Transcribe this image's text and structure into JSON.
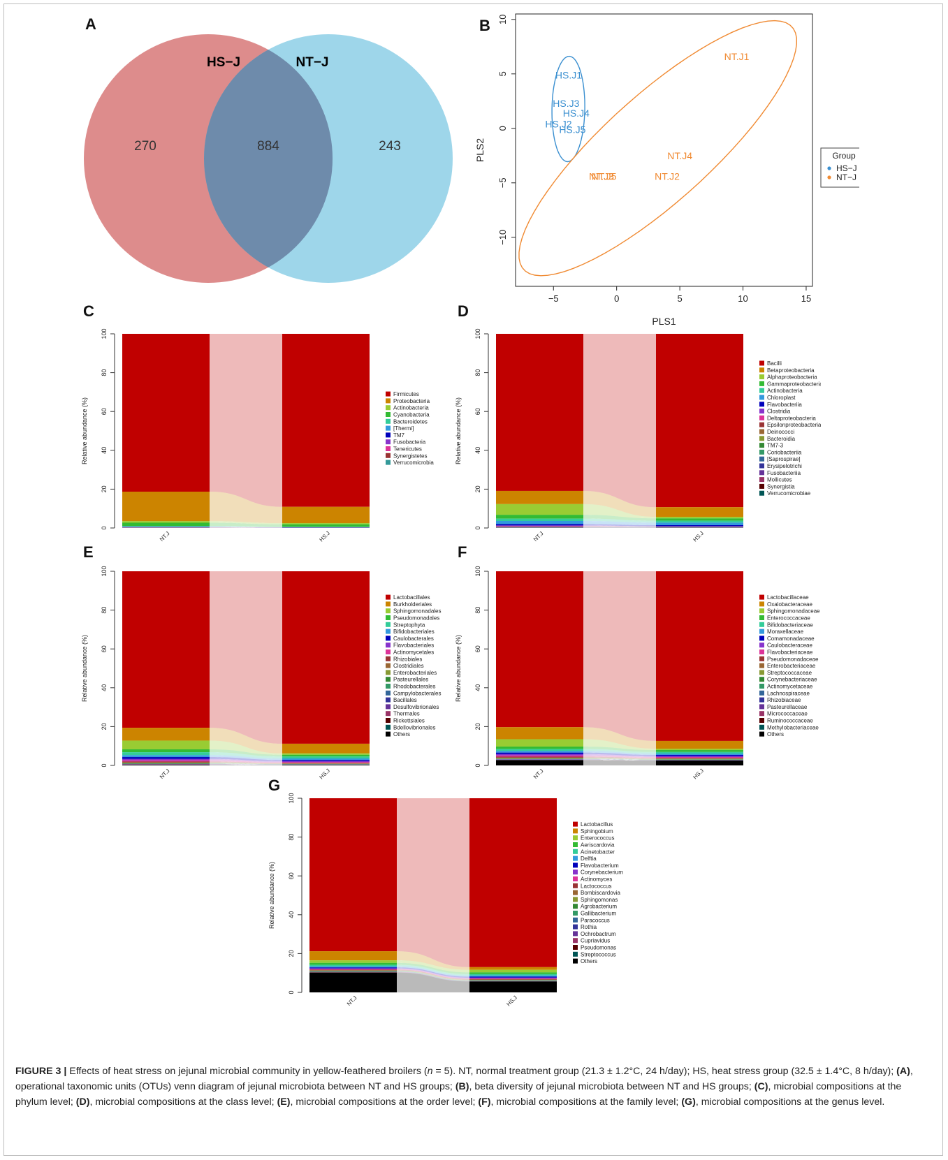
{
  "panels": {
    "A": {
      "letter": "A"
    },
    "B": {
      "letter": "B"
    },
    "C": {
      "letter": "C"
    },
    "D": {
      "letter": "D"
    },
    "E": {
      "letter": "E"
    },
    "F": {
      "letter": "F"
    },
    "G": {
      "letter": "G"
    }
  },
  "chart_data": [
    {
      "panel": "A",
      "type": "venn",
      "sets": [
        {
          "name": "HS-J",
          "label": "HS−J",
          "unique": 270,
          "color": "#d98080"
        },
        {
          "name": "NT-J",
          "label": "NT−J",
          "unique": 243,
          "color": "#7ec8e3"
        }
      ],
      "overlap": 884
    },
    {
      "panel": "B",
      "type": "scatter",
      "xlabel": "PLS1",
      "ylabel": "PLS2",
      "xlim": [
        -8,
        15.5
      ],
      "ylim": [
        -14.5,
        10.5
      ],
      "xticks": [
        -5,
        0,
        5,
        10,
        15
      ],
      "yticks": [
        -10,
        -5,
        0,
        5,
        10
      ],
      "legend": {
        "title": "Group",
        "placement": "right"
      },
      "series": [
        {
          "name": "HS−J",
          "color": "#3a8fd0",
          "points": [
            {
              "label": "HS.J1",
              "x": -3.8,
              "y": 4.9
            },
            {
              "label": "HS.J3",
              "x": -4.0,
              "y": 2.3
            },
            {
              "label": "HS.J4",
              "x": -3.2,
              "y": 1.4
            },
            {
              "label": "HS.J2",
              "x": -4.6,
              "y": 0.4
            },
            {
              "label": "HS.J5",
              "x": -3.5,
              "y": -0.1
            }
          ]
        },
        {
          "name": "NT−J",
          "color": "#f08a32",
          "points": [
            {
              "label": "NT.J1",
              "x": 9.5,
              "y": 6.6
            },
            {
              "label": "NT.J4",
              "x": 5.0,
              "y": -2.5
            },
            {
              "label": "NT.J2",
              "x": 4.0,
              "y": -4.4
            },
            {
              "label": "NT.J3",
              "x": -1.2,
              "y": -4.4
            },
            {
              "label": "NT.J5",
              "x": -1.0,
              "y": -4.4
            }
          ]
        }
      ]
    },
    {
      "panel": "C",
      "type": "bar",
      "stacked": true,
      "ylabel": "Relative abundance (%)",
      "ylim": [
        0,
        100
      ],
      "yticks": [
        0,
        20,
        40,
        60,
        80,
        100
      ],
      "categories": [
        "NT.J",
        "HS.J"
      ],
      "series": [
        {
          "name": "Firmicutes",
          "color": "#c00000",
          "values": [
            81.3,
            89.2
          ]
        },
        {
          "name": "Proteobacteria",
          "color": "#cc8400",
          "values": [
            15.2,
            8.4
          ]
        },
        {
          "name": "Actinobacteria",
          "color": "#99cc33",
          "values": [
            0.8,
            0.6
          ]
        },
        {
          "name": "Cyanobacteria",
          "color": "#33bb33",
          "values": [
            1.7,
            1.3
          ]
        },
        {
          "name": "Bacteroidetes",
          "color": "#33cc99",
          "values": [
            0.3,
            0.2
          ]
        },
        {
          "name": "[Thermi]",
          "color": "#3399dd",
          "values": [
            0.2,
            0.1
          ]
        },
        {
          "name": "TM7",
          "color": "#0000bb",
          "values": [
            0.1,
            0.1
          ]
        },
        {
          "name": "Fusobacteria",
          "color": "#8833cc",
          "values": [
            0.1,
            0.05
          ]
        },
        {
          "name": "Tenericutes",
          "color": "#dd3399",
          "values": [
            0.1,
            0.05
          ]
        },
        {
          "name": "Synergistetes",
          "color": "#993333",
          "values": [
            0.1,
            0.05
          ]
        },
        {
          "name": "Verrucomicrobia",
          "color": "#339999",
          "values": [
            0.1,
            0.05
          ]
        }
      ]
    },
    {
      "panel": "D",
      "type": "bar",
      "stacked": true,
      "ylabel": "Relative abundance (%)",
      "ylim": [
        0,
        100
      ],
      "yticks": [
        0,
        20,
        40,
        60,
        80,
        100
      ],
      "categories": [
        "NT.J",
        "HS.J"
      ],
      "series": [
        {
          "name": "Bacilli",
          "color": "#c00000",
          "values": [
            81.0,
            89.5
          ]
        },
        {
          "name": "Betaproteobacteria",
          "color": "#cc8400",
          "values": [
            6.8,
            5.0
          ]
        },
        {
          "name": "Alphaproteobacteria",
          "color": "#99cc33",
          "values": [
            5.5,
            0.8
          ]
        },
        {
          "name": "Gammaproteobacteria",
          "color": "#33bb33",
          "values": [
            2.0,
            1.2
          ]
        },
        {
          "name": "Actinobacteria",
          "color": "#33cc99",
          "values": [
            1.2,
            1.0
          ]
        },
        {
          "name": "Chloroplast",
          "color": "#3399dd",
          "values": [
            1.6,
            1.3
          ]
        },
        {
          "name": "Flavobacteriia",
          "color": "#0000bb",
          "values": [
            0.7,
            0.6
          ]
        },
        {
          "name": "Clostridia",
          "color": "#8833cc",
          "values": [
            0.4,
            0.2
          ]
        },
        {
          "name": "Deltaproteobacteria",
          "color": "#dd3399",
          "values": [
            0.2,
            0.1
          ]
        },
        {
          "name": "Epsilonproteobacteria",
          "color": "#993333",
          "values": [
            0.1,
            0.05
          ]
        },
        {
          "name": "Deinococci",
          "color": "#996633",
          "values": [
            0.1,
            0.05
          ]
        },
        {
          "name": "Bacteroidia",
          "color": "#889933",
          "values": [
            0.1,
            0.05
          ]
        },
        {
          "name": "TM7-3",
          "color": "#338833",
          "values": [
            0.05,
            0.05
          ]
        },
        {
          "name": "Coriobacteriia",
          "color": "#339966",
          "values": [
            0.05,
            0.05
          ]
        },
        {
          "name": "[Saprospirae]",
          "color": "#336699",
          "values": [
            0.05,
            0.05
          ]
        },
        {
          "name": "Erysipelotrichi",
          "color": "#333399",
          "values": [
            0.05,
            0.05
          ]
        },
        {
          "name": "Fusobacteriia",
          "color": "#663399",
          "values": [
            0.05,
            0.05
          ]
        },
        {
          "name": "Mollicutes",
          "color": "#993366",
          "values": [
            0.05,
            0.05
          ]
        },
        {
          "name": "Synergistia",
          "color": "#550000",
          "values": [
            0.05,
            0.05
          ]
        },
        {
          "name": "Verrucomicrobiae",
          "color": "#005555",
          "values": [
            0.05,
            0.05
          ]
        }
      ]
    },
    {
      "panel": "E",
      "type": "bar",
      "stacked": true,
      "ylabel": "Relative abundance (%)",
      "ylim": [
        0,
        100
      ],
      "yticks": [
        0,
        20,
        40,
        60,
        80,
        100
      ],
      "categories": [
        "NT.J",
        "HS.J"
      ],
      "series": [
        {
          "name": "Lactobacillales",
          "color": "#c00000",
          "values": [
            80.7,
            89.0
          ]
        },
        {
          "name": "Burkholderiales",
          "color": "#cc8400",
          "values": [
            6.6,
            5.0
          ]
        },
        {
          "name": "Sphingomonadales",
          "color": "#99cc33",
          "values": [
            4.5,
            0.7
          ]
        },
        {
          "name": "Pseudomonadales",
          "color": "#33bb33",
          "values": [
            1.5,
            0.9
          ]
        },
        {
          "name": "Streptophyta",
          "color": "#33cc99",
          "values": [
            1.5,
            1.0
          ]
        },
        {
          "name": "Bifidobacteriales",
          "color": "#3399dd",
          "values": [
            1.0,
            0.8
          ]
        },
        {
          "name": "Caulobacterales",
          "color": "#0000bb",
          "values": [
            1.0,
            0.6
          ]
        },
        {
          "name": "Flavobacteriales",
          "color": "#8833cc",
          "values": [
            0.7,
            0.5
          ]
        },
        {
          "name": "Actinomycetales",
          "color": "#dd3399",
          "values": [
            0.6,
            0.4
          ]
        },
        {
          "name": "Rhizobiales",
          "color": "#993333",
          "values": [
            0.4,
            0.3
          ]
        },
        {
          "name": "Clostridiales",
          "color": "#996633",
          "values": [
            0.3,
            0.2
          ]
        },
        {
          "name": "Enterobacteriales",
          "color": "#889933",
          "values": [
            0.2,
            0.1
          ]
        },
        {
          "name": "Pasteurellales",
          "color": "#338833",
          "values": [
            0.2,
            0.1
          ]
        },
        {
          "name": "Rhodobacterales",
          "color": "#339966",
          "values": [
            0.1,
            0.1
          ]
        },
        {
          "name": "Campylobacterales",
          "color": "#336699",
          "values": [
            0.1,
            0.05
          ]
        },
        {
          "name": "Bacillales",
          "color": "#333399",
          "values": [
            0.1,
            0.05
          ]
        },
        {
          "name": "Desulfovibrionales",
          "color": "#663399",
          "values": [
            0.1,
            0.05
          ]
        },
        {
          "name": "Thermales",
          "color": "#993366",
          "values": [
            0.1,
            0.05
          ]
        },
        {
          "name": "Rickettsiales",
          "color": "#550000",
          "values": [
            0.05,
            0.05
          ]
        },
        {
          "name": "Bdellovibrionales",
          "color": "#005555",
          "values": [
            0.05,
            0.05
          ]
        },
        {
          "name": "Others",
          "color": "#000000",
          "values": [
            0.3,
            0.2
          ]
        }
      ]
    },
    {
      "panel": "F",
      "type": "bar",
      "stacked": true,
      "ylabel": "Relative abundance (%)",
      "ylim": [
        0,
        100
      ],
      "yticks": [
        0,
        20,
        40,
        60,
        80,
        100
      ],
      "categories": [
        "NT.J",
        "HS.J"
      ],
      "series": [
        {
          "name": "Lactobacillaceae",
          "color": "#c00000",
          "values": [
            80.3,
            87.3
          ]
        },
        {
          "name": "Oxalobacteraceae",
          "color": "#cc8400",
          "values": [
            6.2,
            4.0
          ]
        },
        {
          "name": "Sphingomonadaceae",
          "color": "#99cc33",
          "values": [
            3.8,
            0.7
          ]
        },
        {
          "name": "Enterococcaceae",
          "color": "#33bb33",
          "values": [
            1.2,
            1.0
          ]
        },
        {
          "name": "Bifidobacteriaceae",
          "color": "#33cc99",
          "values": [
            1.0,
            0.8
          ]
        },
        {
          "name": "Moraxellaceae",
          "color": "#3399dd",
          "values": [
            0.9,
            0.7
          ]
        },
        {
          "name": "Comamonadaceae",
          "color": "#0000bb",
          "values": [
            0.8,
            0.6
          ]
        },
        {
          "name": "Caulobacteraceae",
          "color": "#8833cc",
          "values": [
            0.7,
            0.5
          ]
        },
        {
          "name": "Flavobacteriaceae",
          "color": "#dd3399",
          "values": [
            0.6,
            0.4
          ]
        },
        {
          "name": "Pseudomonadaceae",
          "color": "#993333",
          "values": [
            0.5,
            0.4
          ]
        },
        {
          "name": "Enterobacteriaceae",
          "color": "#996633",
          "values": [
            0.3,
            0.2
          ]
        },
        {
          "name": "Streptococcaceae",
          "color": "#889933",
          "values": [
            0.2,
            0.2
          ]
        },
        {
          "name": "Corynebacteriaceae",
          "color": "#338833",
          "values": [
            0.2,
            0.1
          ]
        },
        {
          "name": "Actinomycetaceae",
          "color": "#339966",
          "values": [
            0.1,
            0.1
          ]
        },
        {
          "name": "Lachnospiraceae",
          "color": "#336699",
          "values": [
            0.1,
            0.1
          ]
        },
        {
          "name": "Rhizobiaceae",
          "color": "#333399",
          "values": [
            0.1,
            0.1
          ]
        },
        {
          "name": "Pasteurellaceae",
          "color": "#663399",
          "values": [
            0.1,
            0.05
          ]
        },
        {
          "name": "Micrococcaceae",
          "color": "#993366",
          "values": [
            0.1,
            0.05
          ]
        },
        {
          "name": "Ruminococcaceae",
          "color": "#550000",
          "values": [
            0.05,
            0.05
          ]
        },
        {
          "name": "Methylobacteriaceae",
          "color": "#005555",
          "values": [
            0.05,
            0.05
          ]
        },
        {
          "name": "Others",
          "color": "#000000",
          "values": [
            2.7,
            2.5
          ]
        }
      ]
    },
    {
      "panel": "G",
      "type": "bar",
      "stacked": true,
      "ylabel": "Relative abundance (%)",
      "ylim": [
        0,
        100
      ],
      "yticks": [
        0,
        20,
        40,
        60,
        80,
        100
      ],
      "categories": [
        "NT.J",
        "HS.J"
      ],
      "series": [
        {
          "name": "Lactobacillus",
          "color": "#c00000",
          "values": [
            80.3,
            87.0
          ]
        },
        {
          "name": "Sphingobium",
          "color": "#cc8400",
          "values": [
            4.8,
            1.4
          ]
        },
        {
          "name": "Enterococcus",
          "color": "#99cc33",
          "values": [
            1.3,
            1.3
          ]
        },
        {
          "name": "Aeriscardovia",
          "color": "#33bb33",
          "values": [
            1.0,
            0.9
          ]
        },
        {
          "name": "Acinetobacter",
          "color": "#33cc99",
          "values": [
            0.8,
            0.7
          ]
        },
        {
          "name": "Delftia",
          "color": "#3399dd",
          "values": [
            0.6,
            0.6
          ]
        },
        {
          "name": "Flavobacterium",
          "color": "#0000bb",
          "values": [
            0.5,
            0.5
          ]
        },
        {
          "name": "Corynebacterium",
          "color": "#8833cc",
          "values": [
            0.4,
            0.4
          ]
        },
        {
          "name": "Actinomyces",
          "color": "#dd3399",
          "values": [
            0.3,
            0.3
          ]
        },
        {
          "name": "Lactococcus",
          "color": "#993333",
          "values": [
            0.3,
            0.3
          ]
        },
        {
          "name": "Bombiscardovia",
          "color": "#996633",
          "values": [
            0.2,
            0.2
          ]
        },
        {
          "name": "Sphingomonas",
          "color": "#889933",
          "values": [
            0.2,
            0.2
          ]
        },
        {
          "name": "Agrobacterium",
          "color": "#338833",
          "values": [
            0.2,
            0.1
          ]
        },
        {
          "name": "Gallibacterium",
          "color": "#339966",
          "values": [
            0.1,
            0.1
          ]
        },
        {
          "name": "Paracoccus",
          "color": "#336699",
          "values": [
            0.1,
            0.1
          ]
        },
        {
          "name": "Rothia",
          "color": "#333399",
          "values": [
            0.1,
            0.1
          ]
        },
        {
          "name": "Ochrobactrum",
          "color": "#663399",
          "values": [
            0.1,
            0.05
          ]
        },
        {
          "name": "Cupriavidus",
          "color": "#993366",
          "values": [
            0.1,
            0.05
          ]
        },
        {
          "name": "Pseudomonas",
          "color": "#550000",
          "values": [
            0.05,
            0.05
          ]
        },
        {
          "name": "Streptococcus",
          "color": "#005555",
          "values": [
            0.05,
            0.05
          ]
        },
        {
          "name": "Others",
          "color": "#000000",
          "values": [
            10.4,
            5.6
          ]
        }
      ]
    }
  ],
  "caption": {
    "label": "FIGURE 3 |",
    "t1": " Effects of heat stress on jejunal microbial community in yellow-feathered broilers (",
    "n_var": "n",
    "t2": " = 5). NT, normal treatment group (21.3 ± 1.2°C, 24 h/day); HS, heat stress group (32.5 ± 1.4°C, 8 h/day); ",
    "pA": "(A)",
    "tA": ", operational taxonomic units (OTUs) venn diagram of jejunal microbiota between NT and HS groups; ",
    "pB": "(B)",
    "tB": ", beta diversity of jejunal microbiota between NT and HS groups; ",
    "pC": "(C)",
    "tC": ", microbial compositions at the phylum level; ",
    "pD": "(D)",
    "tD": ", microbial compositions at the class level; ",
    "pE": "(E)",
    "tE": ", microbial compositions at the order level; ",
    "pF": "(F)",
    "tF": ", microbial compositions at the family level; ",
    "pG": "(G)",
    "tG": ", microbial compositions at the genus level."
  }
}
